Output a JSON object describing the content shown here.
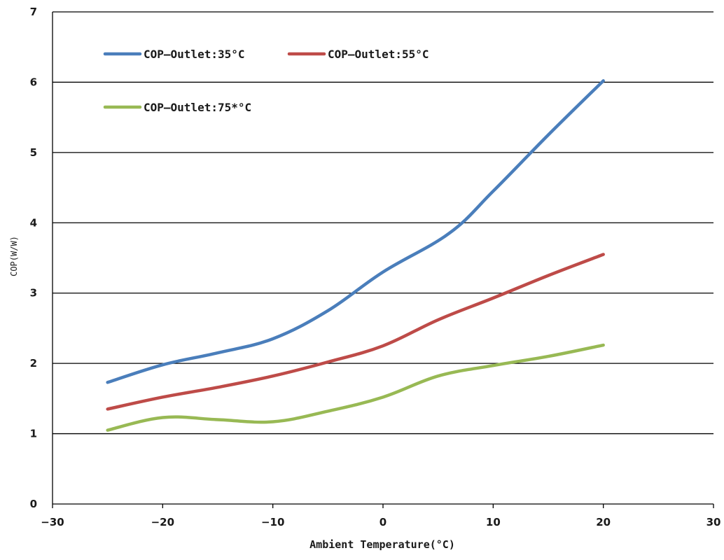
{
  "chart_data": {
    "type": "line",
    "title": "",
    "xlabel": "Ambient Temperature(°C)",
    "ylabel": "COP(W/W)",
    "xlim": [
      -30,
      30
    ],
    "ylim": [
      0,
      7
    ],
    "xticks": [
      -30,
      -20,
      -10,
      0,
      10,
      20,
      30
    ],
    "yticks": [
      0,
      1,
      2,
      3,
      4,
      5,
      6,
      7
    ],
    "xtick_labels": [
      "−30",
      "−20",
      "−10",
      "0",
      "10",
      "20",
      "30"
    ],
    "ytick_labels": [
      "0",
      "1",
      "2",
      "3",
      "4",
      "5",
      "6",
      "7"
    ],
    "grid": "horizontal",
    "legend_position": "top-left",
    "series": [
      {
        "name": "COP—Outlet:35°C",
        "color": "#4a7ebb",
        "x": [
          -25,
          -20,
          -15,
          -10,
          -5,
          0,
          6,
          10,
          15,
          20
        ],
        "y": [
          1.73,
          1.98,
          2.15,
          2.35,
          2.75,
          3.3,
          3.85,
          4.45,
          5.25,
          6.02
        ]
      },
      {
        "name": "COP—Outlet:55°C",
        "color": "#be4b48",
        "x": [
          -25,
          -20,
          -15,
          -10,
          -5,
          0,
          5,
          10,
          15,
          20
        ],
        "y": [
          1.35,
          1.52,
          1.66,
          1.82,
          2.02,
          2.25,
          2.62,
          2.93,
          3.25,
          3.55
        ]
      },
      {
        "name": "COP—Outlet:75*°C",
        "color": "#98b954",
        "x": [
          -25,
          -20,
          -15,
          -10,
          -5,
          0,
          5,
          10,
          15,
          20
        ],
        "y": [
          1.05,
          1.23,
          1.2,
          1.17,
          1.32,
          1.52,
          1.82,
          1.97,
          2.1,
          2.26
        ]
      }
    ]
  }
}
